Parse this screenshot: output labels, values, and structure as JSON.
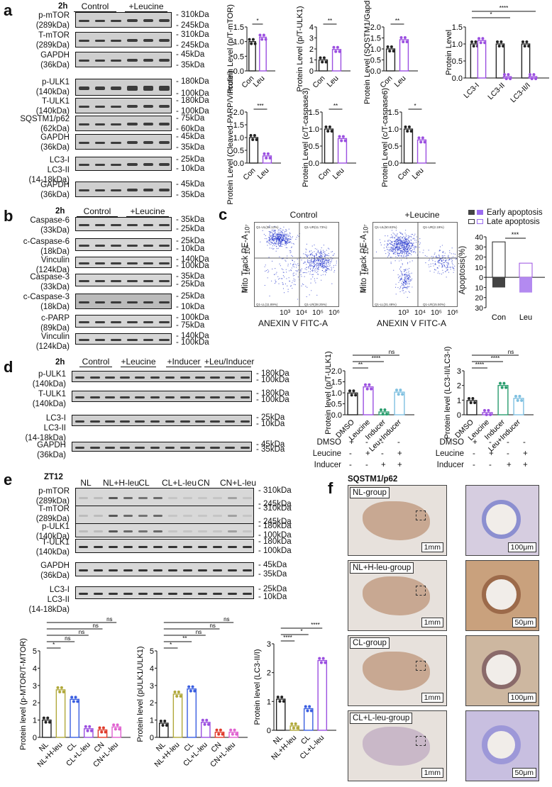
{
  "panel_a": {
    "label": "a",
    "time": "2h",
    "groups": [
      "Control",
      "+Leucine"
    ],
    "blots": [
      {
        "name": "p-mTOR",
        "mw": "(289kDa)",
        "markers": [
          "310kDa",
          "245kDa"
        ]
      },
      {
        "name": "T-mTOR",
        "mw": "(289kDa)",
        "markers": [
          "310kDa",
          "245kDa"
        ]
      },
      {
        "name": "GAPDH",
        "mw": "(36kDa)",
        "markers": [
          "45kDa",
          "35kDa"
        ]
      },
      {
        "name": "p-ULK1",
        "mw": "(140kDa)",
        "markers": [
          "180kDa",
          "100kDa"
        ]
      },
      {
        "name": "T-ULK1",
        "mw": "(140kDa)",
        "markers": [
          "180kDa",
          "100kDa"
        ]
      },
      {
        "name": "SQSTM1/p62",
        "mw": "(62kDa)",
        "markers": [
          "75kDa",
          "60kDa"
        ]
      },
      {
        "name": "GAPDH",
        "mw": "(36kDa)",
        "markers": [
          "45kDa",
          "35kDa"
        ]
      },
      {
        "name": "LC3-I",
        "name2": "LC3-II",
        "mw": "(14-18kDa)",
        "markers": [
          "25kDa",
          "10kDa"
        ]
      },
      {
        "name": "GAPDH",
        "mw": "(36kDa)",
        "markers": [
          "45kDa",
          "35kDa"
        ]
      }
    ]
  },
  "panel_b": {
    "label": "b",
    "time": "2h",
    "groups": [
      "Control",
      "+Leucine"
    ],
    "blots": [
      {
        "name": "Caspase-6",
        "mw": "(33kDa)",
        "markers": [
          "35kDa",
          "25kDa"
        ]
      },
      {
        "name": "c-Caspase-6",
        "mw": "(18kDa)",
        "markers": [
          "25kDa",
          "10kDa"
        ]
      },
      {
        "name": "Vinculin",
        "mw": "(124kDa)",
        "markers": [
          "140kDa",
          "100kDa"
        ]
      },
      {
        "name": "Caspase-3",
        "mw": "(33kDa)",
        "markers": [
          "35kDa",
          "25kDa"
        ]
      },
      {
        "name": "c-Caspase-3",
        "mw": "(18kDa)",
        "markers": [
          "25kDa",
          "10kDa"
        ]
      },
      {
        "name": "c-PARP",
        "mw": "(89kDa)",
        "markers": [
          "100kDa",
          "75kDa"
        ]
      },
      {
        "name": "Vinculin",
        "mw": "(124kDa)",
        "markers": [
          "140kDa",
          "100kDa"
        ]
      }
    ]
  },
  "panel_c": {
    "label": "c",
    "flow": [
      {
        "title": "Control",
        "ylabel": "Mito Track PE-A",
        "xlabel": "ANEXIN V FITC-A",
        "UL": "Q1-UL(38.13%)",
        "UR": "Q1-UR(11.73%)",
        "LL": "Q1-LL(11.89%)",
        "LR": "Q1-LR(38.25%)"
      },
      {
        "title": "+Leucine",
        "ylabel": "Mito Track PE-A",
        "xlabel": "ANEXIN V FITC-A",
        "UL": "Q1-UL(50.83%)",
        "UR": "Q1-UR(2.19%)",
        "LL": "Q1-LL(31.48%)",
        "LR": "Q1-LR(15.50%)"
      }
    ],
    "yticks": [
      "10⁷",
      "10⁶",
      "10⁵",
      "0"
    ],
    "xticks": [
      "10³",
      "10⁴",
      "10⁵",
      "10⁶"
    ],
    "legend": [
      "Early apoptosis",
      "Late apoptosis"
    ],
    "apoptosis_ylabel": "Apoptosis(%)",
    "apoptosis_yticks": [
      "40",
      "30",
      "20",
      "10",
      "0",
      "10",
      "20",
      "30"
    ],
    "apoptosis_x": [
      "Con",
      "Leu"
    ],
    "apoptosis_sig": "***"
  },
  "panel_d": {
    "label": "d",
    "time": "2h",
    "groups": [
      "Control",
      "+Leucine",
      "+Inducer",
      "+Leu/Inducer"
    ],
    "blots": [
      {
        "name": "p-ULK1",
        "mw": "(140kDa)",
        "markers": [
          "180kDa",
          "100kDa"
        ]
      },
      {
        "name": "T-ULK1",
        "mw": "(140kDa)",
        "markers": [
          "180kDa",
          "100kDa"
        ]
      },
      {
        "name": "LC3-I",
        "name2": "LC3-II",
        "mw": "(14-18kDa)",
        "markers": [
          "25kDa",
          "10kDa"
        ]
      },
      {
        "name": "GAPDH",
        "mw": "(36kDa)",
        "markers": [
          "45kDa",
          "35kDa"
        ]
      }
    ],
    "treat_rows": [
      {
        "label": "DMSO",
        "vals": [
          "+",
          "-",
          "-",
          "-"
        ]
      },
      {
        "label": "Leucine",
        "vals": [
          "-",
          "+",
          "-",
          "+"
        ]
      },
      {
        "label": "Inducer",
        "vals": [
          "-",
          "-",
          "+",
          "+"
        ]
      }
    ]
  },
  "panel_e": {
    "label": "e",
    "time": "ZT12",
    "groups": [
      "NL",
      "NL+H-leu",
      "CL",
      "CL+L-leu",
      "CN",
      "CN+L-leu"
    ],
    "blots": [
      {
        "name": "p-mTOR",
        "mw": "(289kDa)",
        "markers": [
          "310kDa",
          "245kDa"
        ]
      },
      {
        "name": "T-mTOR",
        "mw": "(289kDa)",
        "markers": [
          "310kDa",
          "245kDa"
        ]
      },
      {
        "name": "p-ULK1",
        "mw": "(140kDa)",
        "markers": [
          "180kDa",
          "100kDa"
        ]
      },
      {
        "name": "T-ULK1",
        "mw": "(140kDa)",
        "markers": [
          "180kDa",
          "100kDa"
        ]
      },
      {
        "name": "GAPDH",
        "mw": "(36kDa)",
        "markers": [
          "45kDa",
          "35kDa"
        ]
      },
      {
        "name": "LC3-I",
        "name2": "LC3-II",
        "mw": "(14-18kDa)",
        "markers": [
          "25kDa",
          "10kDa"
        ]
      }
    ]
  },
  "panel_f": {
    "label": "f",
    "title": "SQSTM1/p62",
    "rows": [
      {
        "group": "NL-group",
        "scale_low": "1mm",
        "scale_high": "100μm"
      },
      {
        "group": "NL+H-leu-group",
        "scale_low": "1mm",
        "scale_high": "50μm"
      },
      {
        "group": "CL-group",
        "scale_low": "1mm",
        "scale_high": "100μm"
      },
      {
        "group": "CL+L-leu-group",
        "scale_low": "1mm",
        "scale_high": "50μm"
      }
    ]
  },
  "chart_data": [
    {
      "id": "a1",
      "type": "bar",
      "categories": [
        "Con",
        "Leu"
      ],
      "values": [
        1.0,
        1.15
      ],
      "ylabel": "Protein Level (p/T-mTOR)",
      "ylim": [
        0,
        1.5
      ],
      "yticks": [
        "0.0",
        "0.5",
        "1.0",
        "1.5"
      ],
      "sig": [
        "*"
      ],
      "colors": [
        "#222222",
        "#9b4fe0"
      ]
    },
    {
      "id": "a2",
      "type": "bar",
      "categories": [
        "Con",
        "Leu"
      ],
      "values": [
        1.0,
        1.95
      ],
      "ylabel": "Protein Level (p/T-ULK1)",
      "ylim": [
        0,
        4
      ],
      "yticks": [
        "0",
        "1",
        "2",
        "3",
        "4"
      ],
      "sig": [
        "**"
      ],
      "colors": [
        "#222222",
        "#9b4fe0"
      ]
    },
    {
      "id": "a3",
      "type": "bar",
      "categories": [
        "Con",
        "Leu"
      ],
      "values": [
        1.0,
        1.42
      ],
      "ylabel": "Protein Level (SQSTM1/Gapdh)",
      "ylim": [
        0,
        2.0
      ],
      "yticks": [
        "0.0",
        "0.5",
        "1.0",
        "1.5",
        "2.0"
      ],
      "sig": [
        "**"
      ],
      "colors": [
        "#222222",
        "#9b4fe0"
      ]
    },
    {
      "id": "a4",
      "type": "bar",
      "categories": [
        "LC3-I",
        "LC3-II",
        "LC3-II/I"
      ],
      "series": [
        {
          "name": "Con",
          "values": [
            1.0,
            1.0,
            1.0
          ]
        },
        {
          "name": "Leu",
          "values": [
            1.1,
            0.04,
            0.04
          ]
        }
      ],
      "ylabel": "Protein Level",
      "ylim": [
        0,
        1.5
      ],
      "yticks": [
        "0.0",
        "0.5",
        "1.0",
        "1.5"
      ],
      "sig": [
        "",
        "*",
        "****"
      ],
      "colors": [
        "#222222",
        "#9b4fe0"
      ]
    },
    {
      "id": "a5",
      "type": "bar",
      "categories": [
        "Con",
        "Leu"
      ],
      "values": [
        1.0,
        0.28
      ],
      "ylabel": "Protein Level (Cleaved-PARP/Vinculin)",
      "ylim": [
        0,
        2.0
      ],
      "yticks": [
        "0.0",
        "0.5",
        "1.0",
        "1.5",
        "2.0"
      ],
      "sig": [
        "***"
      ],
      "colors": [
        "#222222",
        "#9b4fe0"
      ]
    },
    {
      "id": "a6",
      "type": "bar",
      "categories": [
        "Con",
        "Leu"
      ],
      "values": [
        1.0,
        0.72
      ],
      "ylabel": "Protein Level (c/T-caspase3)",
      "ylim": [
        0,
        1.5
      ],
      "yticks": [
        "0.0",
        "0.5",
        "1.0",
        "1.5"
      ],
      "sig": [
        "**"
      ],
      "colors": [
        "#222222",
        "#9b4fe0"
      ]
    },
    {
      "id": "a7",
      "type": "bar",
      "categories": [
        "Con",
        "Leu"
      ],
      "values": [
        1.0,
        0.68
      ],
      "ylabel": "Protein Level (c/T-caspase6)",
      "ylim": [
        0,
        1.5
      ],
      "yticks": [
        "0.0",
        "0.5",
        "1.0",
        "1.5"
      ],
      "sig": [
        "*"
      ],
      "colors": [
        "#222222",
        "#9b4fe0"
      ]
    },
    {
      "id": "c3",
      "type": "bar",
      "categories": [
        "Con",
        "Leu"
      ],
      "series": [
        {
          "name": "Late apoptosis",
          "values": [
            35,
            14
          ]
        },
        {
          "name": "Early apoptosis",
          "values": [
            -10,
            -15
          ]
        }
      ],
      "ylabel": "Apoptosis(%)",
      "ylim": [
        -30,
        40
      ],
      "sig": [
        "***"
      ],
      "colors": [
        "#222222",
        "#9b4fe0"
      ]
    },
    {
      "id": "d1",
      "type": "bar",
      "categories": [
        "DMSO",
        "Leucine",
        "Inducer",
        "Leu+Inducer"
      ],
      "values": [
        0.99,
        1.27,
        0.13,
        1.03
      ],
      "ylabel": "Protein level (p/T-ULK1)",
      "ylim": [
        0,
        2.0
      ],
      "yticks": [
        "0.0",
        "0.5",
        "1.0",
        "1.5",
        "2.0"
      ],
      "sig": [
        "**",
        "****",
        "ns"
      ],
      "colors": [
        "#222222",
        "#9b4fe0",
        "#2a9d6e",
        "#7fc0e0"
      ]
    },
    {
      "id": "d2",
      "type": "bar",
      "categories": [
        "DMSO",
        "Leucine",
        "Inducer",
        "Leu+Inducer"
      ],
      "values": [
        0.97,
        0.15,
        2.0,
        1.12
      ],
      "ylabel": "Protein level (LC3-II/LC3-I)",
      "ylim": [
        0,
        3
      ],
      "yticks": [
        "0",
        "1",
        "2",
        "3"
      ],
      "sig": [
        "****",
        "****",
        "ns"
      ],
      "colors": [
        "#222222",
        "#9b4fe0",
        "#2a9d6e",
        "#7fc0e0"
      ]
    },
    {
      "id": "e1",
      "type": "bar",
      "categories": [
        "NL",
        "NL+H-leu",
        "CL",
        "CL+L-leu",
        "CN",
        "CN+L-leu"
      ],
      "values": [
        1.0,
        2.75,
        2.2,
        0.5,
        0.43,
        0.6
      ],
      "ylabel": "Protein level (p-MTOR/T-MTOR)",
      "ylim": [
        0,
        5
      ],
      "yticks": [
        "0",
        "1",
        "2",
        "3",
        "4",
        "5"
      ],
      "sig": [
        "*",
        "ns",
        "ns",
        "ns",
        "ns"
      ],
      "colors": [
        "#222222",
        "#b0a83a",
        "#3a5ee0",
        "#9b4fe0",
        "#e03a2a",
        "#e060d0"
      ]
    },
    {
      "id": "e2",
      "type": "bar",
      "categories": [
        "NL",
        "NL+H-leu",
        "CL",
        "CL+L-leu",
        "CN",
        "CN+L-leu"
      ],
      "values": [
        0.82,
        2.5,
        2.8,
        0.87,
        0.3,
        0.3
      ],
      "ylabel": "Protein level (pULK1/ULK1)",
      "ylim": [
        0,
        5
      ],
      "yticks": [
        "0",
        "1",
        "2",
        "3",
        "4",
        "5"
      ],
      "sig": [
        "*",
        "**",
        "ns",
        "ns",
        "ns"
      ],
      "colors": [
        "#222222",
        "#b0a83a",
        "#3a5ee0",
        "#9b4fe0",
        "#e03a2a",
        "#e060d0"
      ]
    },
    {
      "id": "e3",
      "type": "bar",
      "categories": [
        "NL",
        "NL+H-leu",
        "CL",
        "CL+L-leu"
      ],
      "values": [
        1.08,
        0.15,
        0.75,
        2.42
      ],
      "ylabel": "Protein level (LC3-II/I)",
      "ylim": [
        0,
        3
      ],
      "yticks": [
        "0",
        "1",
        "2",
        "3"
      ],
      "sig": [
        "****",
        "*",
        "****"
      ],
      "colors": [
        "#222222",
        "#b0a83a",
        "#3a5ee0",
        "#9b4fe0"
      ]
    }
  ]
}
